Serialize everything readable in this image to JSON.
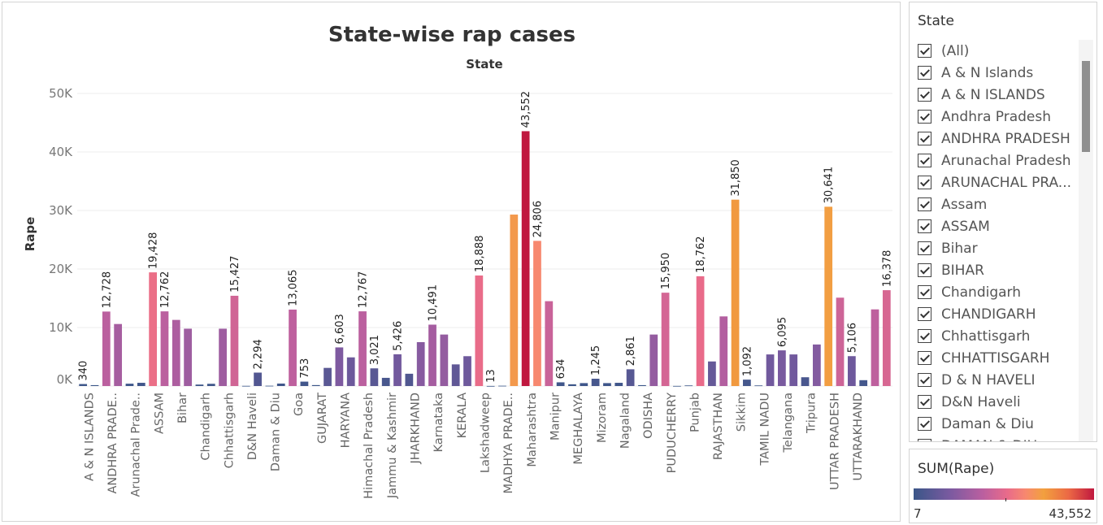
{
  "filter": {
    "title": "State",
    "items": [
      "(All)",
      "A & N Islands",
      "A & N ISLANDS",
      "Andhra Pradesh",
      "ANDHRA PRADESH",
      "Arunachal Pradesh",
      "ARUNACHAL PRA...",
      "Assam",
      "ASSAM",
      "Bihar",
      "BIHAR",
      "Chandigarh",
      "CHANDIGARH",
      "Chhattisgarh",
      "CHHATTISGARH",
      "D & N HAVELI",
      "D&N Haveli",
      "Daman & Diu",
      "DAMAN & DIU"
    ]
  },
  "legend": {
    "title": "SUM(Rape)",
    "min_label": "7",
    "max_label": "43,552",
    "colors": [
      "#3a5688",
      "#7a5aa0",
      "#b95fa0",
      "#e96b8a",
      "#f7886f",
      "#f2a03e",
      "#eb6845",
      "#c0183f"
    ]
  },
  "chart_data": {
    "type": "bar",
    "title": "State-wise rap cases",
    "subtitle": "State",
    "ylabel": "Rape",
    "ylim": [
      0,
      50000
    ],
    "yticks": [
      0,
      10000,
      20000,
      30000,
      40000,
      50000
    ],
    "ytick_labels": [
      "0K",
      "10K",
      "20K",
      "30K",
      "40K",
      "50K"
    ],
    "grid": true,
    "x_tick_labels": [
      "A & N ISLANDS",
      "ANDHRA PRADE..",
      "Arunachal Prade..",
      "ASSAM",
      "Bihar",
      "Chandigarh",
      "Chhattisgarh",
      "D&N Haveli",
      "Daman & Diu",
      "Goa",
      "GUJARAT",
      "HARYANA",
      "Himachal Pradesh",
      "Jammu & Kashmir",
      "JHARKHAND",
      "Karnataka",
      "KERALA",
      "Lakshadweep",
      "MADHYA PRADE..",
      "Maharashtra",
      "Manipur",
      "MEGHALAYA",
      "Mizoram",
      "Nagaland",
      "ODISHA",
      "PUDUCHERRY",
      "Punjab",
      "RAJASTHAN",
      "Sikkim",
      "TAMIL NADU",
      "Telangana",
      "Tripura",
      "UTTAR PRADESH",
      "UTTARAKHAND"
    ],
    "values": [
      340,
      150,
      12728,
      10600,
      400,
      550,
      19428,
      12762,
      11300,
      9800,
      250,
      380,
      9800,
      15427,
      30,
      2294,
      50,
      420,
      13065,
      753,
      160,
      3100,
      6603,
      4900,
      12767,
      3021,
      1400,
      5426,
      2100,
      7500,
      10491,
      8800,
      3700,
      5100,
      18888,
      13,
      50,
      29300,
      43552,
      24806,
      14500,
      634,
      300,
      500,
      1245,
      500,
      550,
      2861,
      150,
      8800,
      15950,
      20,
      100,
      18762,
      4200,
      11900,
      31850,
      1092,
      100,
      5400,
      6095,
      5400,
      1500,
      7100,
      30641,
      15100,
      5106,
      1000,
      13100,
      16378
    ],
    "data_labels": [
      "340",
      "",
      "12,728",
      "",
      "",
      "",
      "19,428",
      "12,762",
      "",
      "",
      "",
      "",
      "",
      "15,427",
      "",
      "2,294",
      "",
      "",
      "13,065",
      "753",
      "",
      "",
      "6,603",
      "",
      "12,767",
      "3,021",
      "",
      "5,426",
      "",
      "",
      "10,491",
      "",
      "",
      "",
      "18,888",
      "13",
      "",
      "",
      "43,552",
      "24,806",
      "",
      "634",
      "",
      "",
      "1,245",
      "",
      "",
      "2,861",
      "",
      "",
      "15,950",
      "",
      "",
      "18,762",
      "",
      "",
      "31,850",
      "1,092",
      "",
      "",
      "6,095",
      "",
      "",
      "",
      "30,641",
      "",
      "5,106",
      "",
      "",
      "16,378"
    ]
  }
}
